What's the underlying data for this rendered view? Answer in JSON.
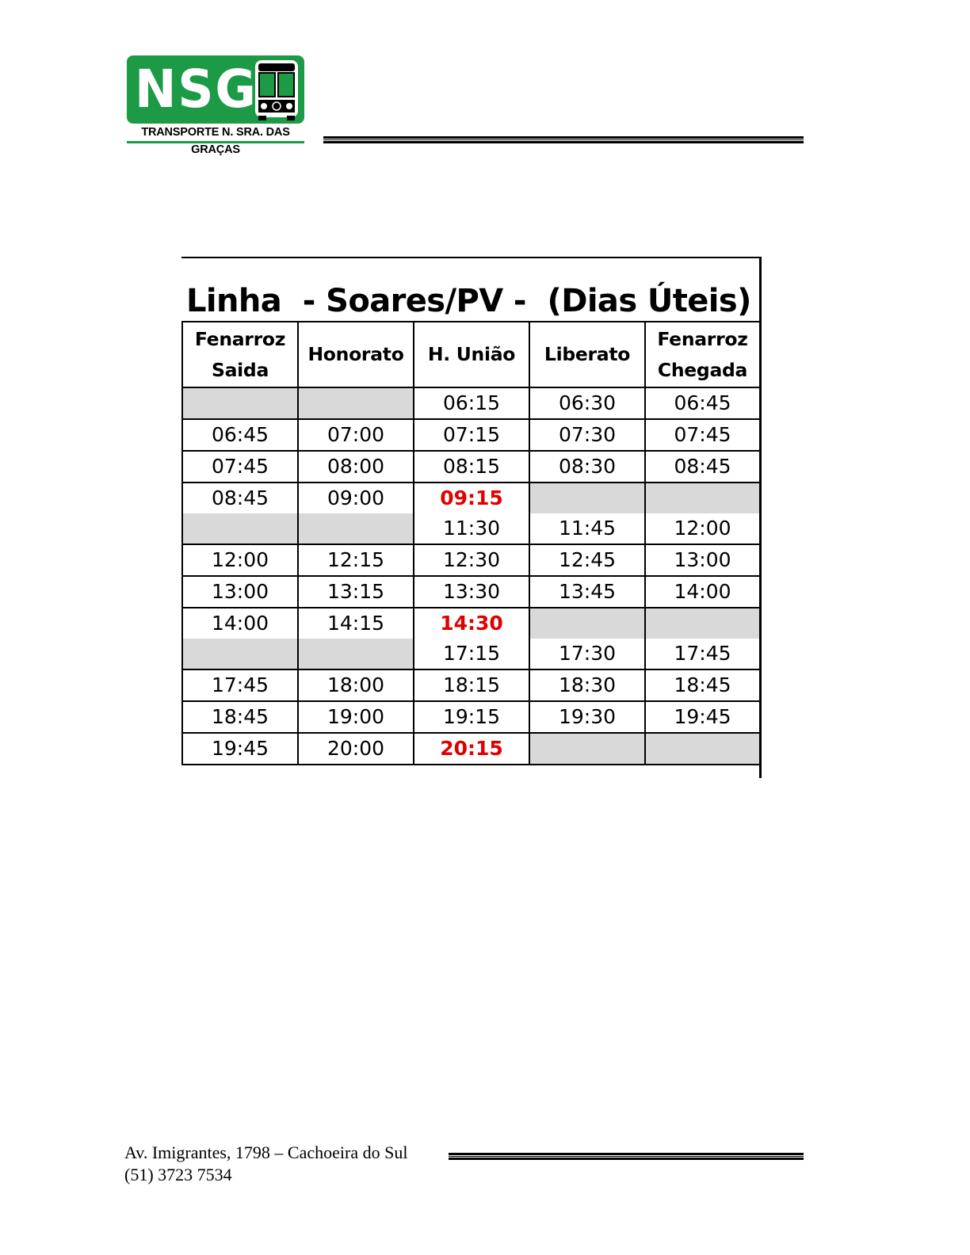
{
  "logo": {
    "letters": "NSG",
    "tagline": "TRANSPORTE N. SRA. DAS GRAÇAS",
    "icon": "bus-icon",
    "color": "#1d9a46"
  },
  "schedule": {
    "title": "Linha  - Soares/PV -  (Dias Úteis)",
    "columns": [
      [
        "Fenarroz",
        "Saida"
      ],
      [
        "Honorato"
      ],
      [
        "H. União"
      ],
      [
        "Liberato"
      ],
      [
        "Fenarroz",
        "Chegada"
      ]
    ],
    "rows": [
      [
        "",
        "",
        "06:15",
        "06:30",
        "06:45"
      ],
      [
        "06:45",
        "07:00",
        "07:15",
        "07:30",
        "07:45"
      ],
      [
        "07:45",
        "08:00",
        "08:15",
        "08:30",
        "08:45"
      ],
      [
        "08:45",
        "09:00",
        "09:15",
        "",
        ""
      ],
      [
        "",
        "",
        "11:30",
        "11:45",
        "12:00"
      ],
      [
        "12:00",
        "12:15",
        "12:30",
        "12:45",
        "13:00"
      ],
      [
        "13:00",
        "13:15",
        "13:30",
        "13:45",
        "14:00"
      ],
      [
        "14:00",
        "14:15",
        "14:30",
        "",
        ""
      ],
      [
        "",
        "",
        "17:15",
        "17:30",
        "17:45"
      ],
      [
        "17:45",
        "18:00",
        "18:15",
        "18:30",
        "18:45"
      ],
      [
        "18:45",
        "19:00",
        "19:15",
        "19:30",
        "19:45"
      ],
      [
        "19:45",
        "20:00",
        "20:15",
        "",
        ""
      ]
    ],
    "highlight_color": "#e00000",
    "empty_cell_color": "#d9d9d9"
  },
  "footer": {
    "address": "Av. Imigrantes, 1798 – Cachoeira do Sul",
    "phone": "(51) 3723 7534"
  }
}
